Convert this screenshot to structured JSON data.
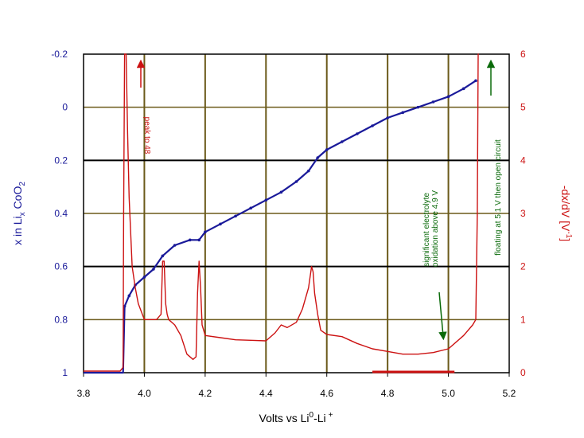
{
  "chart_data": {
    "type": "line",
    "xlabel": "Volts vs Li",
    "xlabel_sup": "0",
    "xlabel_mid": "-Li",
    "xlabel_sup2": "+",
    "ylabel_left": "x in Li",
    "ylabel_left_sub": "x",
    "ylabel_left_mid": " CoO",
    "ylabel_left_sub2": "2",
    "ylabel_right": "-dx/dV [V",
    "ylabel_right_sup": "-1",
    "ylabel_right_end": "]",
    "xlim": [
      3.8,
      5.2
    ],
    "ylim_left": [
      -0.2,
      1.0
    ],
    "ylim_left_inverted": true,
    "ylim_right": [
      0,
      6
    ],
    "x_ticks": [
      "3.8",
      "4.0",
      "4.2",
      "4.4",
      "4.6",
      "4.8",
      "5.0",
      "5.2"
    ],
    "left_ticks": [
      "-0.2",
      "0",
      "0.2",
      "0.4",
      "0.6",
      "0.8",
      "1"
    ],
    "right_ticks": [
      "6",
      "5",
      "4",
      "3",
      "2",
      "1",
      "0"
    ],
    "colors": {
      "composition": "#1a1a9a",
      "derivative": "#cc1111",
      "annotation_green": "#0a6a0a",
      "grid": "#6b5a1a",
      "frame": "#000000"
    },
    "series": [
      {
        "axis": "left",
        "x": [
          3.8,
          3.93,
          3.935,
          3.95,
          3.97,
          4.0,
          4.03,
          4.06,
          4.1,
          4.15,
          4.18,
          4.2,
          4.25,
          4.3,
          4.35,
          4.4,
          4.45,
          4.5,
          4.54,
          4.57,
          4.6,
          4.65,
          4.7,
          4.75,
          4.8,
          4.85,
          4.9,
          4.95,
          5.0,
          5.05,
          5.09
        ],
        "y": [
          1.0,
          1.0,
          0.75,
          0.71,
          0.67,
          0.64,
          0.61,
          0.56,
          0.52,
          0.5,
          0.5,
          0.47,
          0.44,
          0.41,
          0.38,
          0.35,
          0.32,
          0.28,
          0.24,
          0.19,
          0.16,
          0.13,
          0.1,
          0.07,
          0.04,
          0.02,
          0.0,
          -0.02,
          -0.04,
          -0.07,
          -0.1
        ]
      },
      {
        "axis": "right",
        "x": [
          3.8,
          3.92,
          3.93,
          3.932,
          3.935,
          3.94,
          3.945,
          3.95,
          3.96,
          3.97,
          3.98,
          4.0,
          4.02,
          4.04,
          4.055,
          4.06,
          4.065,
          4.07,
          4.075,
          4.08,
          4.1,
          4.12,
          4.14,
          4.16,
          4.17,
          4.175,
          4.18,
          4.185,
          4.19,
          4.2,
          4.25,
          4.3,
          4.35,
          4.4,
          4.43,
          4.45,
          4.47,
          4.5,
          4.52,
          4.54,
          4.55,
          4.555,
          4.56,
          4.57,
          4.58,
          4.6,
          4.65,
          4.7,
          4.75,
          4.8,
          4.85,
          4.9,
          4.95,
          5.0,
          5.05,
          5.08,
          5.09,
          5.095,
          5.098,
          5.1
        ],
        "y": [
          0.03,
          0.03,
          0.1,
          3.0,
          6.0,
          6.0,
          4.5,
          3.3,
          2.0,
          1.6,
          1.3,
          1.0,
          1.0,
          1.0,
          1.1,
          2.1,
          2.1,
          1.3,
          1.1,
          1.0,
          0.9,
          0.7,
          0.35,
          0.25,
          0.3,
          1.5,
          2.1,
          1.6,
          0.9,
          0.7,
          0.66,
          0.62,
          0.61,
          0.6,
          0.75,
          0.9,
          0.85,
          0.95,
          1.2,
          1.6,
          2.0,
          1.9,
          1.5,
          1.1,
          0.8,
          0.72,
          0.68,
          0.55,
          0.45,
          0.4,
          0.35,
          0.35,
          0.38,
          0.45,
          0.7,
          0.9,
          1.0,
          3.0,
          6.0,
          6.0
        ]
      }
    ],
    "annotations": {
      "peak": "peak to 48",
      "electrolyte_line1": "significant electrolyte",
      "electrolyte_line2": "oxidation above 4.9 V",
      "floating": "floating at 5.1 V  then open circuit"
    }
  }
}
